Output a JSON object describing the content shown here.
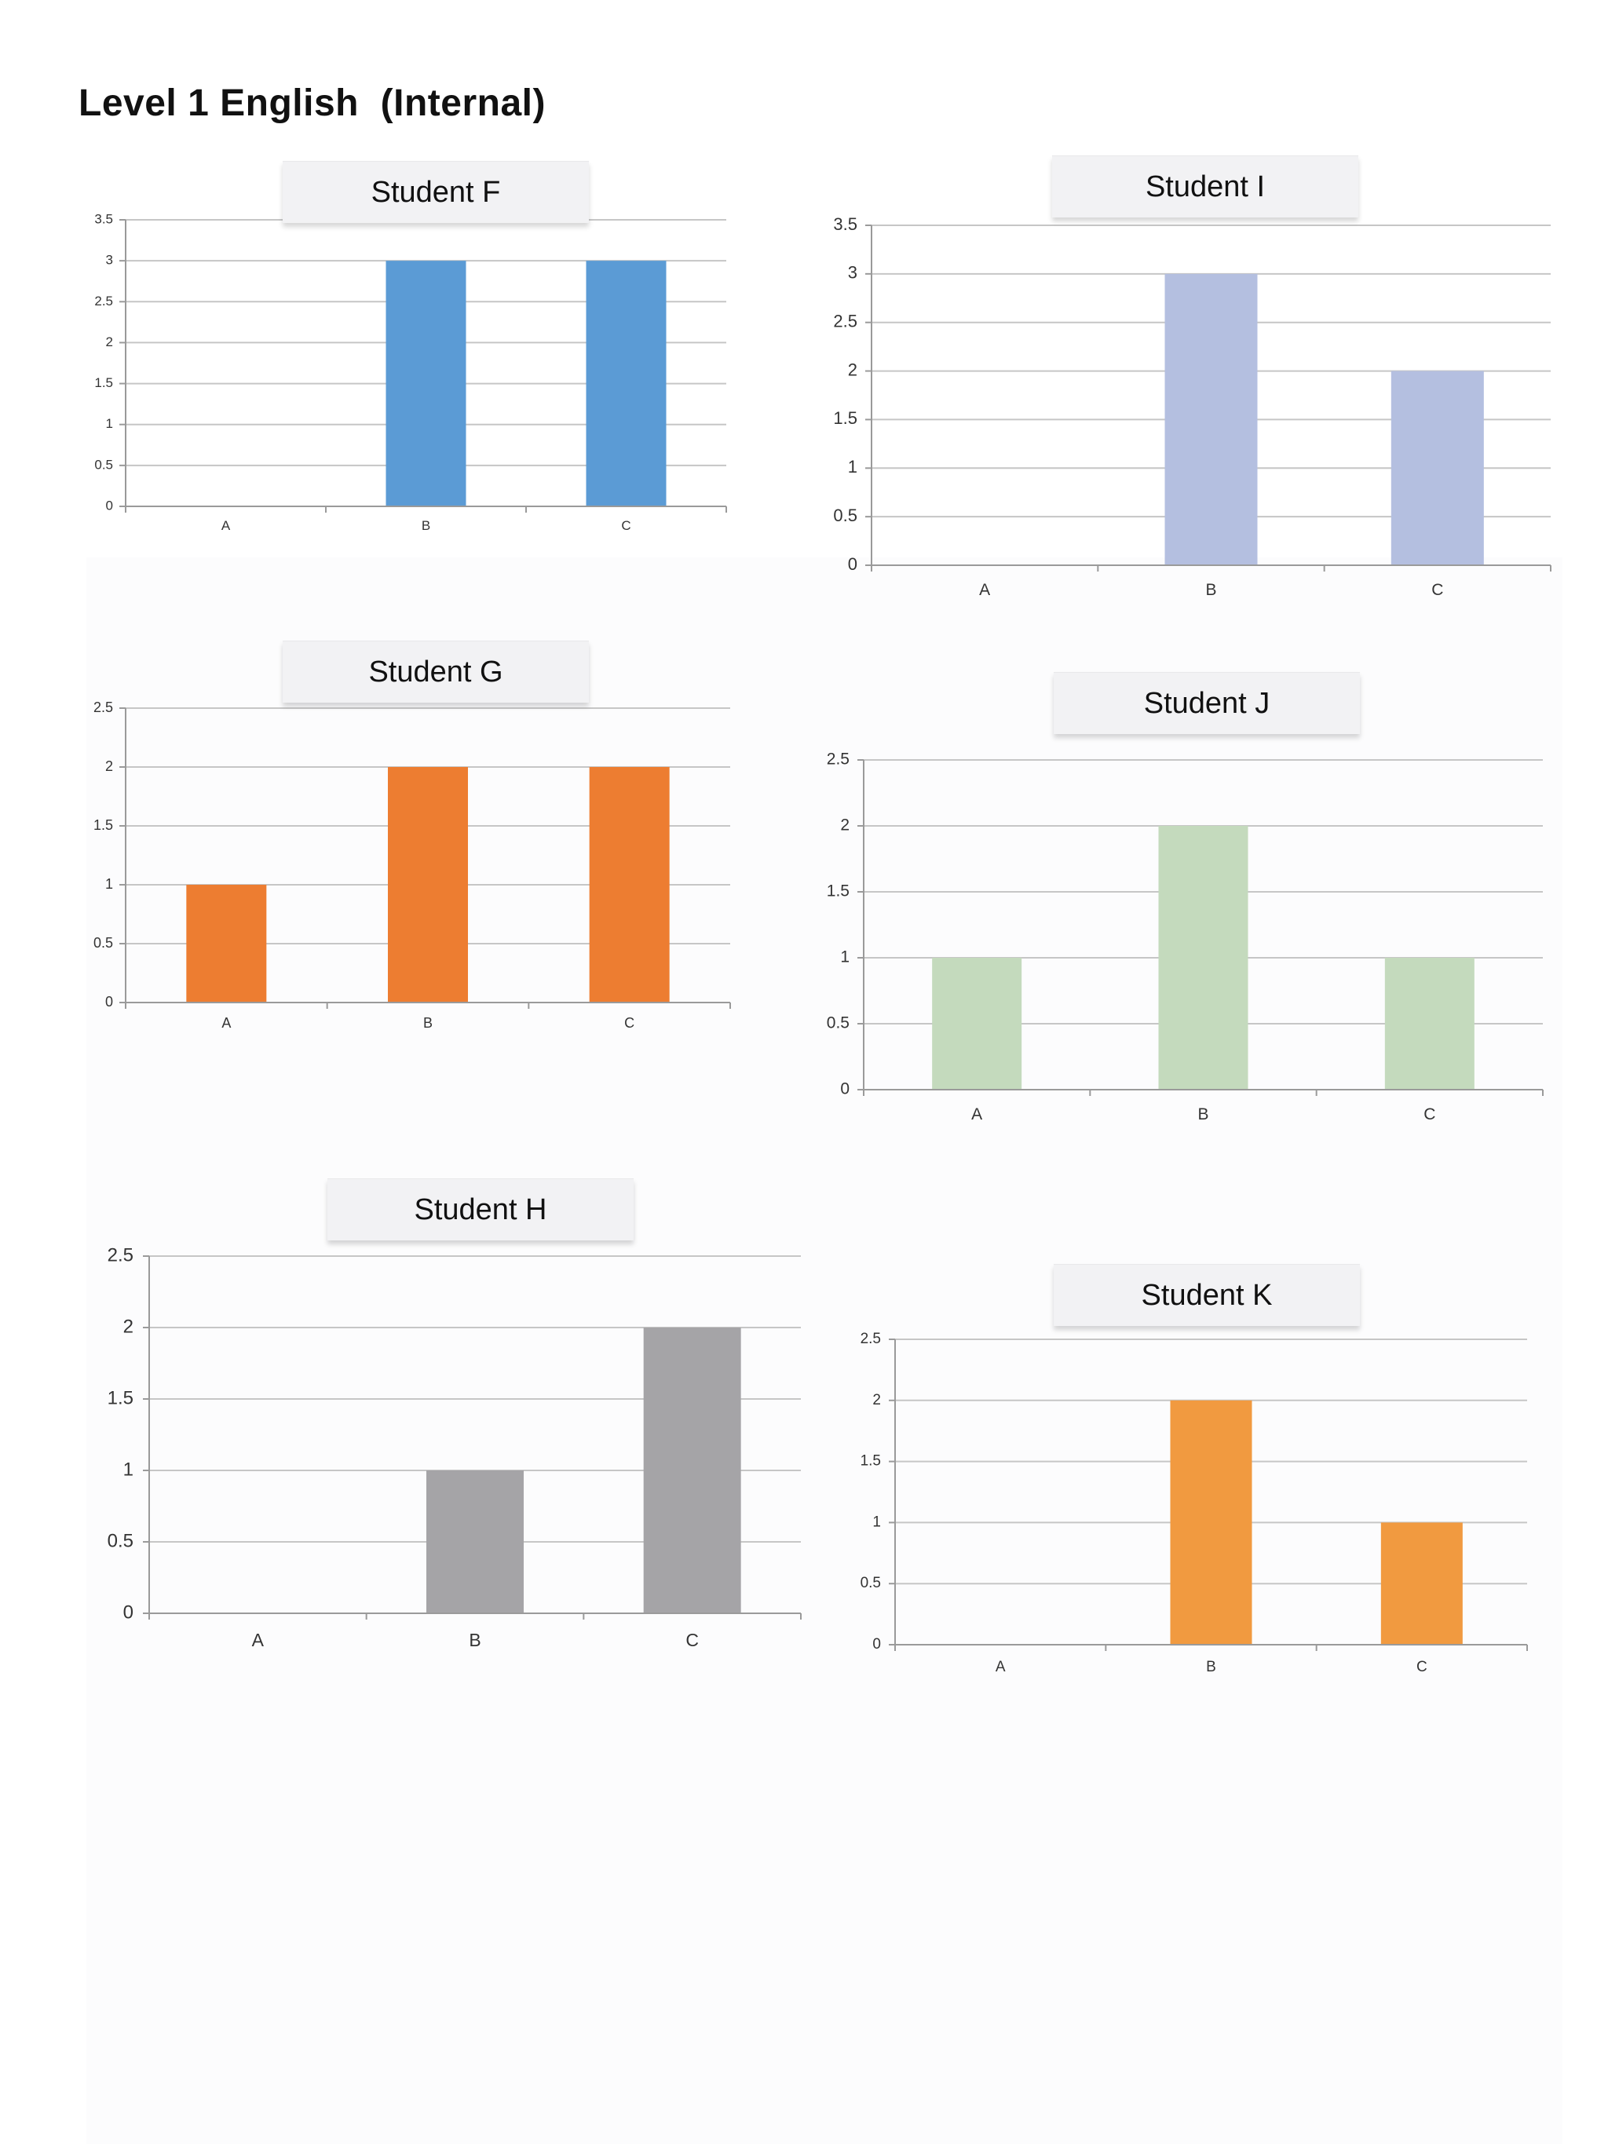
{
  "page": {
    "title": "Level 1 English  (Internal)"
  },
  "chart_data": [
    {
      "type": "bar",
      "title": "Student F",
      "categories": [
        "A",
        "B",
        "C"
      ],
      "values": [
        0,
        3,
        3
      ],
      "ylim": [
        0,
        3.5
      ],
      "yticks": [
        "0",
        "0.5",
        "1",
        "1.5",
        "2",
        "2.5",
        "3",
        "3.5"
      ],
      "grid": true,
      "color": "#5b9bd5"
    },
    {
      "type": "bar",
      "title": "Student I",
      "categories": [
        "A",
        "B",
        "C"
      ],
      "values": [
        0,
        3,
        2
      ],
      "ylim": [
        0,
        3.5
      ],
      "yticks": [
        "0",
        "0.5",
        "1",
        "1.5",
        "2",
        "2.5",
        "3",
        "3.5"
      ],
      "grid": true,
      "color": "#b4bfe0"
    },
    {
      "type": "bar",
      "title": "Student G",
      "categories": [
        "A",
        "B",
        "C"
      ],
      "values": [
        1,
        2,
        2
      ],
      "ylim": [
        0,
        2.5
      ],
      "yticks": [
        "0",
        "0.5",
        "1",
        "1.5",
        "2",
        "2.5"
      ],
      "grid": true,
      "color": "#ed7d31"
    },
    {
      "type": "bar",
      "title": "Student J",
      "categories": [
        "A",
        "B",
        "C"
      ],
      "values": [
        1,
        2,
        1
      ],
      "ylim": [
        0,
        2.5
      ],
      "yticks": [
        "0",
        "0.5",
        "1",
        "1.5",
        "2",
        "2.5"
      ],
      "grid": true,
      "color": "#c4dabd"
    },
    {
      "type": "bar",
      "title": "Student H",
      "categories": [
        "A",
        "B",
        "C"
      ],
      "values": [
        0,
        1,
        2
      ],
      "ylim": [
        0,
        2.5
      ],
      "yticks": [
        "0",
        "0.5",
        "1",
        "1.5",
        "2",
        "2.5"
      ],
      "grid": true,
      "color": "#a5a4a7"
    },
    {
      "type": "bar",
      "title": "Student K",
      "categories": [
        "A",
        "B",
        "C"
      ],
      "values": [
        0,
        2,
        1
      ],
      "ylim": [
        0,
        2.5
      ],
      "yticks": [
        "0",
        "0.5",
        "1",
        "1.5",
        "2",
        "2.5"
      ],
      "grid": true,
      "color": "#f19a40"
    }
  ]
}
